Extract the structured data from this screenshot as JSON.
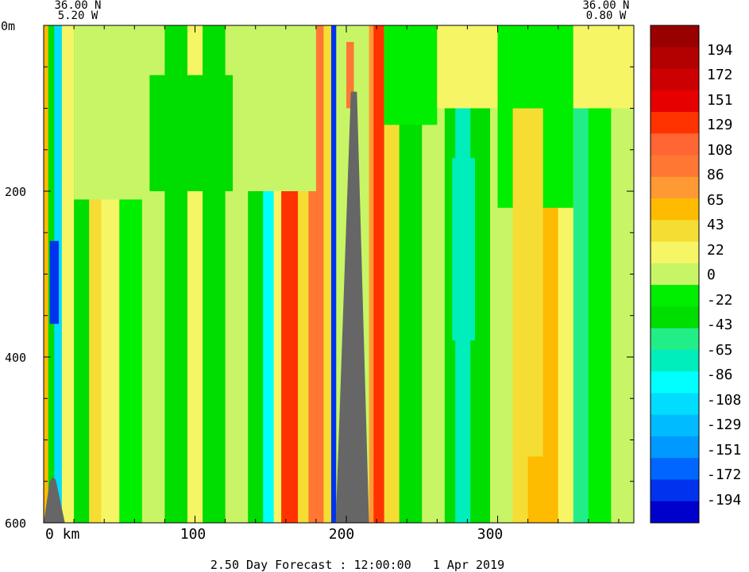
{
  "chart_data": {
    "type": "heatmap",
    "title": "",
    "footer": "2.50 Day Forecast : 12:00:00   1 Apr 2019",
    "left_coords": [
      "36.00 N",
      "5.20 W"
    ],
    "right_coords": [
      "36.00 N",
      "0.80 W"
    ],
    "y_top_label": "0m",
    "y_ticks": [
      "200",
      "400",
      "600"
    ],
    "x_ticks": [
      "0 km",
      "100",
      "200",
      "300"
    ],
    "xlim": [
      0,
      390
    ],
    "ylim": [
      600,
      0
    ],
    "colorbar": {
      "labels": [
        "194",
        "172",
        "151",
        "129",
        "108",
        "86",
        "65",
        "43",
        "22",
        "0",
        "-22",
        "-43",
        "-65",
        "-86",
        "-108",
        "-129",
        "-151",
        "-172",
        "-194"
      ],
      "colors": [
        "#990000",
        "#b30000",
        "#cc0000",
        "#e60000",
        "#ff3300",
        "#ff6633",
        "#ff7733",
        "#ff9933",
        "#ffbb00",
        "#f5dd33",
        "#f5f566",
        "#c8f566",
        "#00ee00",
        "#00dd00",
        "#22ee88",
        "#00eebb",
        "#00ffff",
        "#00ddff",
        "#00bbff",
        "#0099ff",
        "#0066ff",
        "#0033ee",
        "#0000cc"
      ]
    },
    "terrain": [
      {
        "x": [
          0,
          4,
          6,
          8,
          14,
          0
        ],
        "depth": [
          600,
          550,
          545,
          548,
          600,
          600
        ]
      },
      {
        "x": [
          193,
          203,
          207,
          215,
          193
        ],
        "depth": [
          600,
          80,
          80,
          600,
          600
        ]
      }
    ],
    "columns": [
      {
        "x0": 0,
        "x1": 3,
        "value": 60
      },
      {
        "x0": 3,
        "x1": 7,
        "value": -40
      },
      {
        "x0": 7,
        "x1": 12,
        "value": -120
      },
      {
        "x0": 12,
        "x1": 20,
        "value": 10
      },
      {
        "x0": 20,
        "x1": 30,
        "value": -30
      },
      {
        "x0": 30,
        "x1": 38,
        "value": 35
      },
      {
        "x0": 38,
        "x1": 50,
        "value": 10
      },
      {
        "x0": 50,
        "x1": 65,
        "value": -25
      },
      {
        "x0": 65,
        "x1": 80,
        "value": 5
      },
      {
        "x0": 80,
        "x1": 95,
        "value": -30
      },
      {
        "x0": 95,
        "x1": 105,
        "value": 20
      },
      {
        "x0": 105,
        "x1": 120,
        "value": -30
      },
      {
        "x0": 120,
        "x1": 135,
        "value": 5
      },
      {
        "x0": 135,
        "x1": 145,
        "value": -40
      },
      {
        "x0": 145,
        "x1": 152,
        "value": -90
      },
      {
        "x0": 152,
        "x1": 157,
        "value": 20
      },
      {
        "x0": 157,
        "x1": 168,
        "value": 130
      },
      {
        "x0": 168,
        "x1": 175,
        "value": 40
      },
      {
        "x0": 175,
        "x1": 185,
        "value": 90
      },
      {
        "x0": 185,
        "x1": 190,
        "value": 30
      },
      {
        "x0": 190,
        "x1": 193,
        "value": -190
      },
      {
        "x0": 215,
        "x1": 218,
        "value": 80
      },
      {
        "x0": 218,
        "x1": 225,
        "value": 140
      },
      {
        "x0": 225,
        "x1": 235,
        "value": 40
      },
      {
        "x0": 235,
        "x1": 250,
        "value": -30
      },
      {
        "x0": 250,
        "x1": 265,
        "value": 5
      },
      {
        "x0": 265,
        "x1": 272,
        "value": -40
      },
      {
        "x0": 272,
        "x1": 282,
        "value": -80
      },
      {
        "x0": 282,
        "x1": 295,
        "value": -30
      },
      {
        "x0": 295,
        "x1": 310,
        "value": 5
      },
      {
        "x0": 310,
        "x1": 320,
        "value": 25
      },
      {
        "x0": 320,
        "x1": 340,
        "value": 55
      },
      {
        "x0": 340,
        "x1": 350,
        "value": 25
      },
      {
        "x0": 350,
        "x1": 360,
        "value": -60
      },
      {
        "x0": 360,
        "x1": 375,
        "value": -20
      },
      {
        "x0": 375,
        "x1": 390,
        "value": 5
      }
    ],
    "patches": [
      {
        "x0": 20,
        "x1": 70,
        "d0": 0,
        "d1": 210,
        "value": 5
      },
      {
        "x0": 70,
        "x1": 125,
        "d0": 60,
        "d1": 200,
        "value": -30
      },
      {
        "x0": 125,
        "x1": 180,
        "d0": 0,
        "d1": 200,
        "value": 5
      },
      {
        "x0": 225,
        "x1": 260,
        "d0": 0,
        "d1": 120,
        "value": -25
      },
      {
        "x0": 260,
        "x1": 300,
        "d0": 0,
        "d1": 100,
        "value": 10
      },
      {
        "x0": 300,
        "x1": 350,
        "d0": 0,
        "d1": 220,
        "value": -20
      },
      {
        "x0": 350,
        "x1": 390,
        "d0": 0,
        "d1": 100,
        "value": 10
      },
      {
        "x0": 310,
        "x1": 330,
        "d0": 100,
        "d1": 600,
        "value": 45
      },
      {
        "x0": 320,
        "x1": 335,
        "d0": 520,
        "d1": 600,
        "value": 60
      },
      {
        "x0": 4,
        "x1": 10,
        "d0": 260,
        "d1": 360,
        "value": -190
      },
      {
        "x0": 270,
        "x1": 285,
        "d0": 160,
        "d1": 380,
        "value": -70
      },
      {
        "x0": 200,
        "x1": 205,
        "d0": 20,
        "d1": 100,
        "value": 100
      }
    ]
  }
}
